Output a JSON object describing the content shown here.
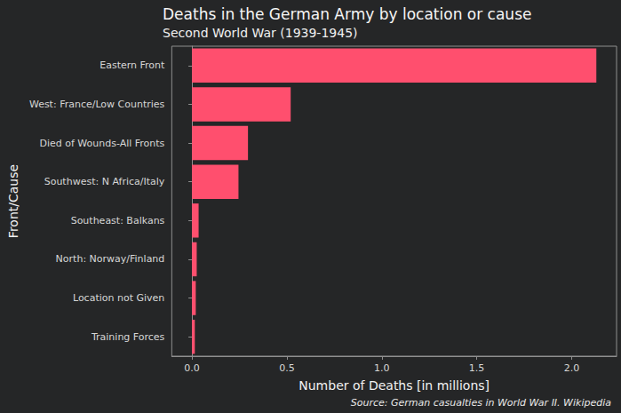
{
  "chart_data": {
    "type": "bar",
    "title": "Deaths in the German Army by location or cause",
    "subtitle": "Second World War (1939-1945)",
    "x_label": "Number of Deaths [in millions]",
    "y_label": "Front/Cause",
    "caption": "Source: German casualties in World War II. Wikipedia",
    "orientation": "horizontal",
    "categories": [
      "Eastern Front",
      "West: France/Low Countries",
      "Died of Wounds-All Fronts",
      "Southwest: N Africa/Italy",
      "Southeast: Balkans",
      "North: Norway/Finland",
      "Location not Given",
      "Training Forces"
    ],
    "values": [
      2.13,
      0.52,
      0.295,
      0.245,
      0.035,
      0.025,
      0.02,
      0.015
    ],
    "color": "#FF4F6E",
    "xlim": [
      -0.1065,
      2.2365
    ],
    "xticks": [
      {
        "value": 0,
        "label": "0.0"
      },
      0.5,
      {
        "value": 1,
        "label": "1.0"
      },
      1.5,
      {
        "value": 2,
        "label": "2.0"
      }
    ],
    "grid": false
  }
}
